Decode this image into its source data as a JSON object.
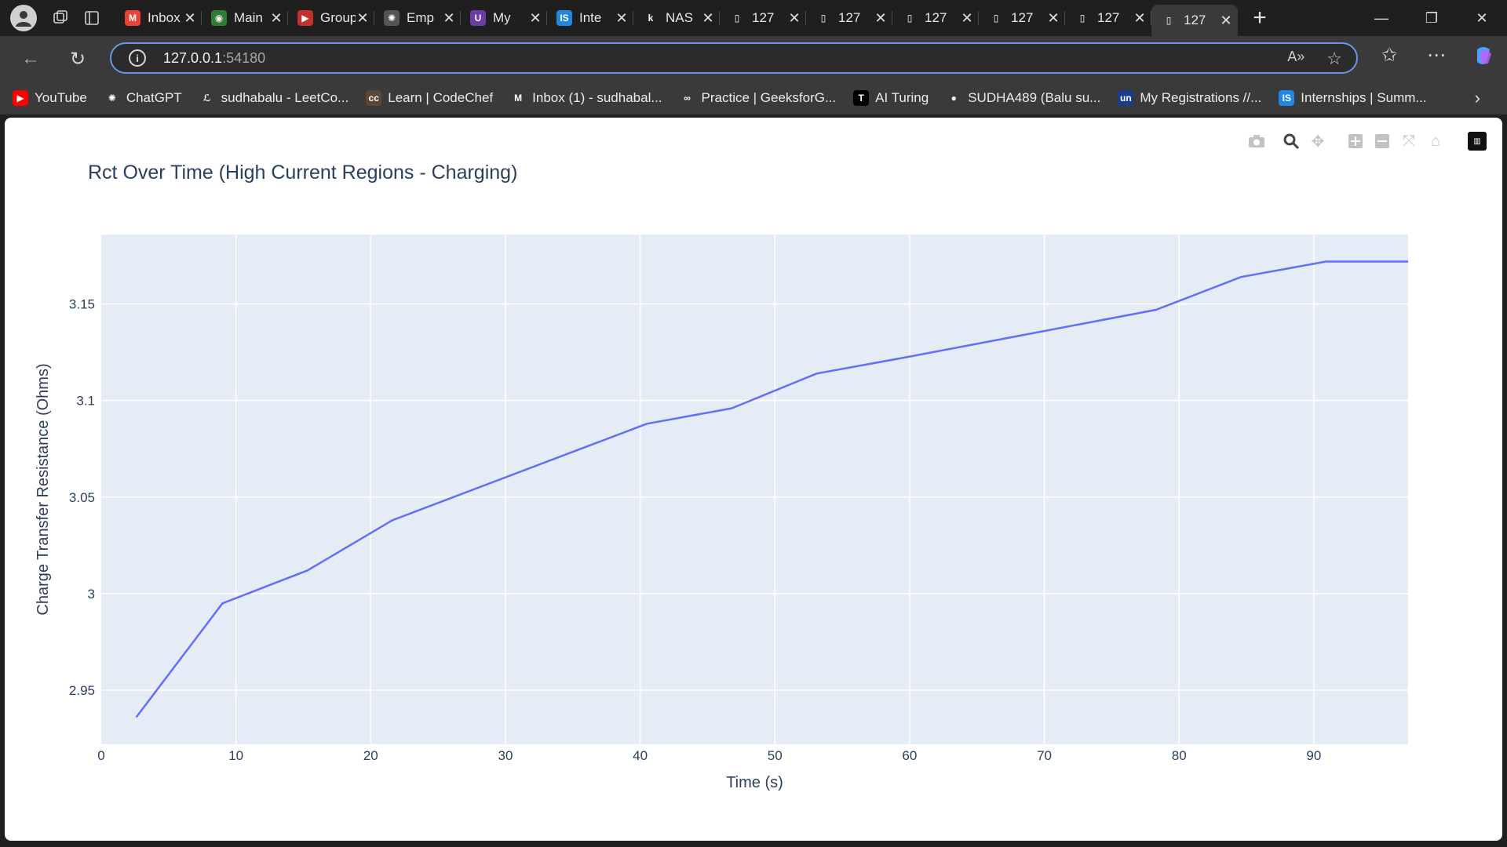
{
  "browser": {
    "tabs": [
      {
        "title": "Inbox",
        "favicon": "gmail-icon",
        "color": "#ea4335",
        "glyph": "M"
      },
      {
        "title": "Main",
        "favicon": "app-icon",
        "color": "#2e7d32",
        "glyph": "◉"
      },
      {
        "title": "Group",
        "favicon": "youtube-icon",
        "color": "#c4302b",
        "glyph": "▶"
      },
      {
        "title": "Emp",
        "favicon": "chatgpt-icon",
        "color": "#555555",
        "glyph": "✺"
      },
      {
        "title": "My",
        "favicon": "unstop-icon",
        "color": "#6a3fa0",
        "glyph": "U"
      },
      {
        "title": "Inte",
        "favicon": "internshala-icon",
        "color": "#1e88e5",
        "glyph": "IS"
      },
      {
        "title": "NAS",
        "favicon": "k-icon",
        "color": "#1f1f1f",
        "glyph": "k"
      },
      {
        "title": "127",
        "favicon": "page-icon",
        "color": "#1f1f1f",
        "glyph": "▯"
      },
      {
        "title": "127",
        "favicon": "page-icon",
        "color": "#1f1f1f",
        "glyph": "▯"
      },
      {
        "title": "127",
        "favicon": "page-icon",
        "color": "#1f1f1f",
        "glyph": "▯"
      },
      {
        "title": "127",
        "favicon": "page-icon",
        "color": "#1f1f1f",
        "glyph": "▯"
      },
      {
        "title": "127",
        "favicon": "page-icon",
        "color": "#1f1f1f",
        "glyph": "▯"
      },
      {
        "title": "127",
        "favicon": "page-icon",
        "color": "#3a3a3a",
        "glyph": "▯",
        "active": true
      }
    ],
    "address": {
      "host": "127.0.0.1",
      "port": ":54180"
    },
    "bookmarks": [
      {
        "label": "YouTube",
        "favicon": "youtube-icon",
        "color": "#ff0000",
        "glyph": "▶"
      },
      {
        "label": "ChatGPT",
        "favicon": "chatgpt-icon",
        "color": "#3a3a3a",
        "glyph": "✺"
      },
      {
        "label": "sudhabalu - LeetCo...",
        "favicon": "leetcode-icon",
        "color": "#3a3a3a",
        "glyph": "ℒ"
      },
      {
        "label": "Learn | CodeChef",
        "favicon": "codechef-icon",
        "color": "#5b4638",
        "glyph": "cc"
      },
      {
        "label": "Inbox (1) - sudhabal...",
        "favicon": "gmail-icon",
        "color": "#3a3a3a",
        "glyph": "M"
      },
      {
        "label": "Practice | GeeksforG...",
        "favicon": "gfg-icon",
        "color": "#3a3a3a",
        "glyph": "∞"
      },
      {
        "label": "AI Turing",
        "favicon": "turing-icon",
        "color": "#000000",
        "glyph": "T"
      },
      {
        "label": "SUDHA489 (Balu su...",
        "favicon": "github-icon",
        "color": "#3a3a3a",
        "glyph": "●"
      },
      {
        "label": "My Registrations //...",
        "favicon": "unstop-icon",
        "color": "#1c3d8f",
        "glyph": "un"
      },
      {
        "label": "Internships | Summ...",
        "favicon": "internshala-icon",
        "color": "#1e88e5",
        "glyph": "IS"
      }
    ]
  },
  "chart_data": {
    "type": "line",
    "title": "Rct Over Time (High Current Regions - Charging)",
    "xlabel": "Time (s)",
    "ylabel": "Charge Transfer Resistance (Ohms)",
    "xlim": [
      0,
      97
    ],
    "ylim": [
      2.922,
      3.186
    ],
    "xticks": [
      0,
      10,
      20,
      30,
      40,
      50,
      60,
      70,
      80,
      90
    ],
    "yticks": [
      2.95,
      3,
      3.05,
      3.1,
      3.15
    ],
    "ytick_labels": [
      "2.95",
      "3",
      "3.05",
      "3.1",
      "3.15"
    ],
    "grid": true,
    "line_color": "#636efa",
    "plot_bg": "#e5ecf6",
    "series": [
      {
        "x": [
          2.6,
          9.0,
          15.3,
          21.6,
          40.5,
          46.8,
          53.1,
          59.4,
          78.3,
          84.6,
          90.9,
          97.0
        ],
        "y": [
          2.936,
          2.995,
          3.012,
          3.038,
          3.088,
          3.096,
          3.114,
          3.122,
          3.147,
          3.164,
          3.172,
          3.172
        ]
      }
    ]
  }
}
